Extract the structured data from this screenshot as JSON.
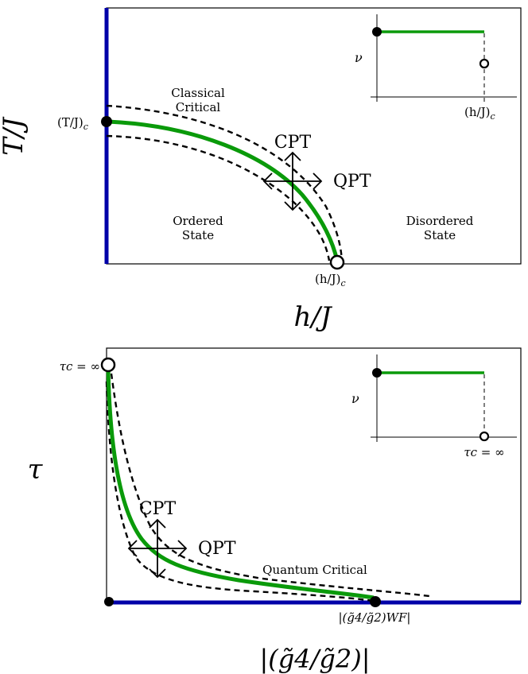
{
  "top_diagram": {
    "x_axis_label": "h/J",
    "y_axis_label": "T/J",
    "y_critical_label": "(T/J)",
    "y_critical_sub": "c",
    "x_critical_label": "(h/J)",
    "x_critical_sub": "c",
    "region_classical": [
      "Classical",
      "Critical"
    ],
    "region_ordered": [
      "Ordered",
      "State"
    ],
    "region_disordered": [
      "Disordered",
      "State"
    ],
    "arrow_cpt": "CPT",
    "arrow_qpt": "QPT",
    "inset": {
      "y_label": "ν",
      "x_label": "(h/J)",
      "x_sub": "c"
    }
  },
  "bottom_diagram": {
    "x_axis_label": "|(g̃4/g̃2)|",
    "y_axis_label": "τ",
    "y_critical_label": "τc = ∞",
    "x_critical_label": "|(g̃4/g̃2)WF|",
    "region_quantum": "Quantum Critical",
    "arrow_cpt": "CPT",
    "arrow_qpt": "QPT",
    "inset": {
      "y_label": "ν",
      "x_label": "τc = ∞"
    }
  },
  "colors": {
    "phase_line": "#0a9a0a",
    "axis_highlight": "#0000a8",
    "frame": "#000000"
  }
}
